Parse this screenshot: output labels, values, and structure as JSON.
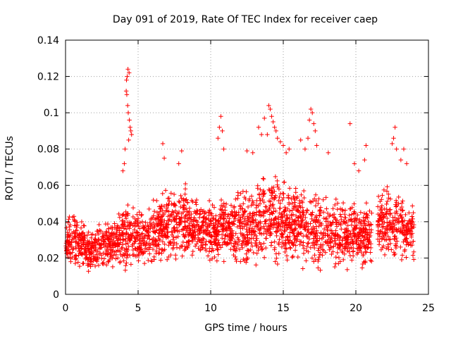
{
  "chart_data": {
    "type": "scatter",
    "title": "Day 091 of 2019, Rate Of TEC Index for receiver caep",
    "xlabel": "GPS time / hours",
    "ylabel": "ROTI / TECUs",
    "xlim": [
      0,
      25
    ],
    "ylim": [
      0,
      0.14
    ],
    "x_ticks": [
      {
        "value": 0,
        "label": "0"
      },
      {
        "value": 5,
        "label": "5"
      },
      {
        "value": 10,
        "label": "10"
      },
      {
        "value": 15,
        "label": "15"
      },
      {
        "value": 20,
        "label": "20"
      },
      {
        "value": 25,
        "label": "25"
      }
    ],
    "y_ticks": [
      {
        "value": 0,
        "label": "0"
      },
      {
        "value": 0.02,
        "label": "0.02"
      },
      {
        "value": 0.04,
        "label": "0.04"
      },
      {
        "value": 0.06,
        "label": "0.06"
      },
      {
        "value": 0.08,
        "label": "0.08"
      },
      {
        "value": 0.1,
        "label": "0.1"
      },
      {
        "value": 0.12,
        "label": "0.12"
      },
      {
        "value": 0.14,
        "label": "0.14"
      }
    ],
    "grid": true,
    "marker": "plus",
    "series_color": "#ff0000",
    "data_gap": [
      21.1,
      21.5
    ],
    "envelope": [
      [
        0.0,
        0.012,
        0.042
      ],
      [
        0.5,
        0.01,
        0.045
      ],
      [
        1.0,
        0.01,
        0.044
      ],
      [
        1.5,
        0.01,
        0.038
      ],
      [
        2.0,
        0.01,
        0.04
      ],
      [
        2.5,
        0.01,
        0.042
      ],
      [
        3.0,
        0.01,
        0.042
      ],
      [
        3.5,
        0.011,
        0.044
      ],
      [
        4.0,
        0.01,
        0.05
      ],
      [
        4.5,
        0.01,
        0.052
      ],
      [
        5.0,
        0.012,
        0.048
      ],
      [
        5.5,
        0.012,
        0.048
      ],
      [
        6.0,
        0.012,
        0.052
      ],
      [
        6.5,
        0.012,
        0.058
      ],
      [
        7.0,
        0.012,
        0.058
      ],
      [
        7.5,
        0.013,
        0.06
      ],
      [
        8.0,
        0.013,
        0.064
      ],
      [
        8.5,
        0.012,
        0.06
      ],
      [
        9.0,
        0.012,
        0.055
      ],
      [
        9.5,
        0.012,
        0.055
      ],
      [
        10.0,
        0.012,
        0.055
      ],
      [
        10.5,
        0.012,
        0.058
      ],
      [
        11.0,
        0.013,
        0.06
      ],
      [
        11.5,
        0.012,
        0.058
      ],
      [
        12.0,
        0.012,
        0.062
      ],
      [
        12.5,
        0.01,
        0.06
      ],
      [
        13.0,
        0.012,
        0.062
      ],
      [
        13.5,
        0.012,
        0.068
      ],
      [
        14.0,
        0.012,
        0.072
      ],
      [
        14.5,
        0.012,
        0.07
      ],
      [
        15.0,
        0.012,
        0.065
      ],
      [
        15.5,
        0.012,
        0.062
      ],
      [
        16.0,
        0.012,
        0.062
      ],
      [
        16.5,
        0.012,
        0.06
      ],
      [
        17.0,
        0.012,
        0.06
      ],
      [
        17.5,
        0.012,
        0.058
      ],
      [
        18.0,
        0.012,
        0.058
      ],
      [
        18.5,
        0.01,
        0.056
      ],
      [
        19.0,
        0.01,
        0.055
      ],
      [
        19.5,
        0.01,
        0.055
      ],
      [
        20.0,
        0.01,
        0.052
      ],
      [
        20.5,
        0.012,
        0.052
      ],
      [
        21.0,
        0.012,
        0.048
      ],
      [
        21.5,
        0.015,
        0.06
      ],
      [
        22.0,
        0.015,
        0.062
      ],
      [
        22.5,
        0.012,
        0.058
      ],
      [
        23.0,
        0.012,
        0.06
      ],
      [
        23.5,
        0.012,
        0.055
      ],
      [
        24.0,
        0.014,
        0.05
      ]
    ],
    "spikes": [
      [
        4.3,
        0.124
      ],
      [
        4.38,
        0.122
      ],
      [
        4.25,
        0.12
      ],
      [
        4.2,
        0.118
      ],
      [
        4.18,
        0.112
      ],
      [
        4.22,
        0.11
      ],
      [
        4.28,
        0.104
      ],
      [
        4.32,
        0.1
      ],
      [
        4.4,
        0.096
      ],
      [
        4.45,
        0.092
      ],
      [
        4.5,
        0.09
      ],
      [
        4.55,
        0.088
      ],
      [
        4.1,
        0.08
      ],
      [
        4.05,
        0.072
      ],
      [
        3.95,
        0.068
      ],
      [
        4.35,
        0.085
      ],
      [
        6.7,
        0.083
      ],
      [
        6.8,
        0.075
      ],
      [
        8.0,
        0.079
      ],
      [
        7.8,
        0.072
      ],
      [
        10.7,
        0.098
      ],
      [
        10.6,
        0.092
      ],
      [
        10.8,
        0.09
      ],
      [
        10.5,
        0.086
      ],
      [
        10.9,
        0.08
      ],
      [
        12.5,
        0.079
      ],
      [
        12.9,
        0.078
      ],
      [
        13.3,
        0.092
      ],
      [
        13.5,
        0.088
      ],
      [
        13.7,
        0.097
      ],
      [
        14.0,
        0.104
      ],
      [
        14.1,
        0.102
      ],
      [
        14.2,
        0.098
      ],
      [
        14.3,
        0.095
      ],
      [
        14.4,
        0.092
      ],
      [
        14.5,
        0.09
      ],
      [
        13.9,
        0.088
      ],
      [
        14.6,
        0.086
      ],
      [
        14.8,
        0.084
      ],
      [
        15.0,
        0.082
      ],
      [
        15.2,
        0.078
      ],
      [
        15.4,
        0.08
      ],
      [
        16.2,
        0.085
      ],
      [
        16.5,
        0.08
      ],
      [
        16.9,
        0.102
      ],
      [
        17.0,
        0.1
      ],
      [
        16.8,
        0.096
      ],
      [
        17.1,
        0.094
      ],
      [
        17.2,
        0.09
      ],
      [
        16.7,
        0.086
      ],
      [
        17.3,
        0.082
      ],
      [
        18.1,
        0.078
      ],
      [
        19.6,
        0.094
      ],
      [
        19.9,
        0.072
      ],
      [
        20.2,
        0.068
      ],
      [
        20.7,
        0.082
      ],
      [
        20.6,
        0.074
      ],
      [
        22.7,
        0.092
      ],
      [
        22.6,
        0.086
      ],
      [
        22.5,
        0.083
      ],
      [
        22.8,
        0.08
      ],
      [
        23.3,
        0.08
      ],
      [
        23.1,
        0.074
      ],
      [
        23.5,
        0.072
      ]
    ]
  }
}
